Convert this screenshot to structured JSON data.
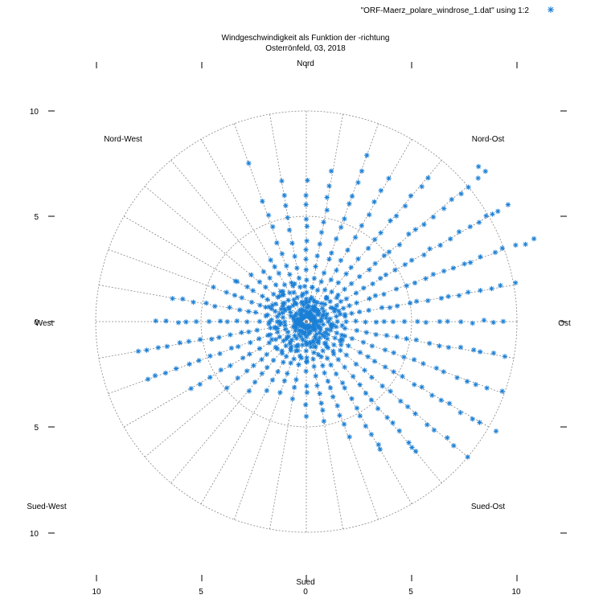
{
  "chart_data": {
    "type": "scatter",
    "polar": true,
    "title": "Windgeschwindigkeit als Funktion der -richtung",
    "subtitle": "Osterrönfeld, 03, 2018",
    "legend": {
      "label": "\"ORF-Maerz_polare_windrose_1.dat\" using 1:2",
      "placement": "top-right",
      "marker": "asterisk"
    },
    "radial_range": [
      0,
      10
    ],
    "radial_grid": [
      5,
      10
    ],
    "angular_grid_step_deg": 10,
    "color": "#1a7fd6",
    "directions": [
      {
        "key": "N",
        "label": "Nord"
      },
      {
        "key": "NE",
        "label": "Nord-Ost"
      },
      {
        "key": "E",
        "label": "Ost"
      },
      {
        "key": "SE",
        "label": "Sued-Ost"
      },
      {
        "key": "S",
        "label": "Sued"
      },
      {
        "key": "SW",
        "label": "Sued-West"
      },
      {
        "key": "W",
        "label": "West"
      },
      {
        "key": "NW",
        "label": "Nord-West"
      }
    ],
    "y_ticks": [
      "10",
      "5",
      "0",
      "5",
      "10"
    ],
    "x_ticks": [
      "10",
      "5",
      "0",
      "5",
      "10"
    ],
    "highlight_points": [
      {
        "dir": 70,
        "speed": 11.5
      },
      {
        "dir": 50,
        "speed": 11.1
      },
      {
        "dir": 48,
        "speed": 11.0
      },
      {
        "dir": 60,
        "speed": 10.2
      },
      {
        "dir": 120,
        "speed": 10.4
      },
      {
        "dir": 130,
        "speed": 10.0
      },
      {
        "dir": 20,
        "speed": 8.4
      },
      {
        "dir": 340,
        "speed": 8.0
      },
      {
        "dir": 250,
        "speed": 8.0
      },
      {
        "dir": 260,
        "speed": 8.1
      },
      {
        "dir": 140,
        "speed": 7.8
      },
      {
        "dir": 150,
        "speed": 7.0
      },
      {
        "dir": 170,
        "speed": 4.8
      },
      {
        "dir": 180,
        "speed": 4.5
      },
      {
        "dir": 300,
        "speed": 3.8
      }
    ],
    "sectors": [
      {
        "dir": 0,
        "n": 14,
        "min": 0.3,
        "max": 6.6
      },
      {
        "dir": 10,
        "n": 14,
        "min": 0.3,
        "max": 7.2
      },
      {
        "dir": 20,
        "n": 15,
        "min": 0.3,
        "max": 7.6
      },
      {
        "dir": 30,
        "n": 14,
        "min": 0.3,
        "max": 7.8
      },
      {
        "dir": 40,
        "n": 18,
        "min": 0.3,
        "max": 9.0
      },
      {
        "dir": 50,
        "n": 22,
        "min": 0.4,
        "max": 10.6
      },
      {
        "dir": 60,
        "n": 24,
        "min": 0.4,
        "max": 11.0
      },
      {
        "dir": 70,
        "n": 24,
        "min": 0.4,
        "max": 11.0
      },
      {
        "dir": 80,
        "n": 22,
        "min": 0.4,
        "max": 10.0
      },
      {
        "dir": 90,
        "n": 20,
        "min": 0.4,
        "max": 9.4
      },
      {
        "dir": 100,
        "n": 20,
        "min": 0.4,
        "max": 9.6
      },
      {
        "dir": 110,
        "n": 20,
        "min": 0.4,
        "max": 9.8
      },
      {
        "dir": 120,
        "n": 20,
        "min": 0.4,
        "max": 9.6
      },
      {
        "dir": 130,
        "n": 18,
        "min": 0.4,
        "max": 9.2
      },
      {
        "dir": 140,
        "n": 17,
        "min": 0.4,
        "max": 8.0
      },
      {
        "dir": 150,
        "n": 15,
        "min": 0.4,
        "max": 6.8
      },
      {
        "dir": 160,
        "n": 14,
        "min": 0.3,
        "max": 5.8
      },
      {
        "dir": 170,
        "n": 11,
        "min": 0.3,
        "max": 4.4
      },
      {
        "dir": 180,
        "n": 9,
        "min": 0.3,
        "max": 4.0
      },
      {
        "dir": 190,
        "n": 8,
        "min": 0.3,
        "max": 3.8
      },
      {
        "dir": 200,
        "n": 8,
        "min": 0.3,
        "max": 3.6
      },
      {
        "dir": 210,
        "n": 9,
        "min": 0.3,
        "max": 3.8
      },
      {
        "dir": 220,
        "n": 10,
        "min": 0.3,
        "max": 4.2
      },
      {
        "dir": 230,
        "n": 11,
        "min": 0.3,
        "max": 4.8
      },
      {
        "dir": 240,
        "n": 13,
        "min": 0.3,
        "max": 6.4
      },
      {
        "dir": 250,
        "n": 16,
        "min": 0.3,
        "max": 7.6
      },
      {
        "dir": 260,
        "n": 17,
        "min": 0.3,
        "max": 7.8
      },
      {
        "dir": 270,
        "n": 16,
        "min": 0.3,
        "max": 7.2
      },
      {
        "dir": 280,
        "n": 14,
        "min": 0.3,
        "max": 6.4
      },
      {
        "dir": 290,
        "n": 12,
        "min": 0.3,
        "max": 4.6
      },
      {
        "dir": 300,
        "n": 10,
        "min": 0.3,
        "max": 3.8
      },
      {
        "dir": 310,
        "n": 9,
        "min": 0.3,
        "max": 3.4
      },
      {
        "dir": 320,
        "n": 9,
        "min": 0.3,
        "max": 3.2
      },
      {
        "dir": 330,
        "n": 9,
        "min": 0.3,
        "max": 3.4
      },
      {
        "dir": 340,
        "n": 11,
        "min": 0.3,
        "max": 6.0
      },
      {
        "dir": 350,
        "n": 13,
        "min": 0.3,
        "max": 6.8
      }
    ]
  }
}
